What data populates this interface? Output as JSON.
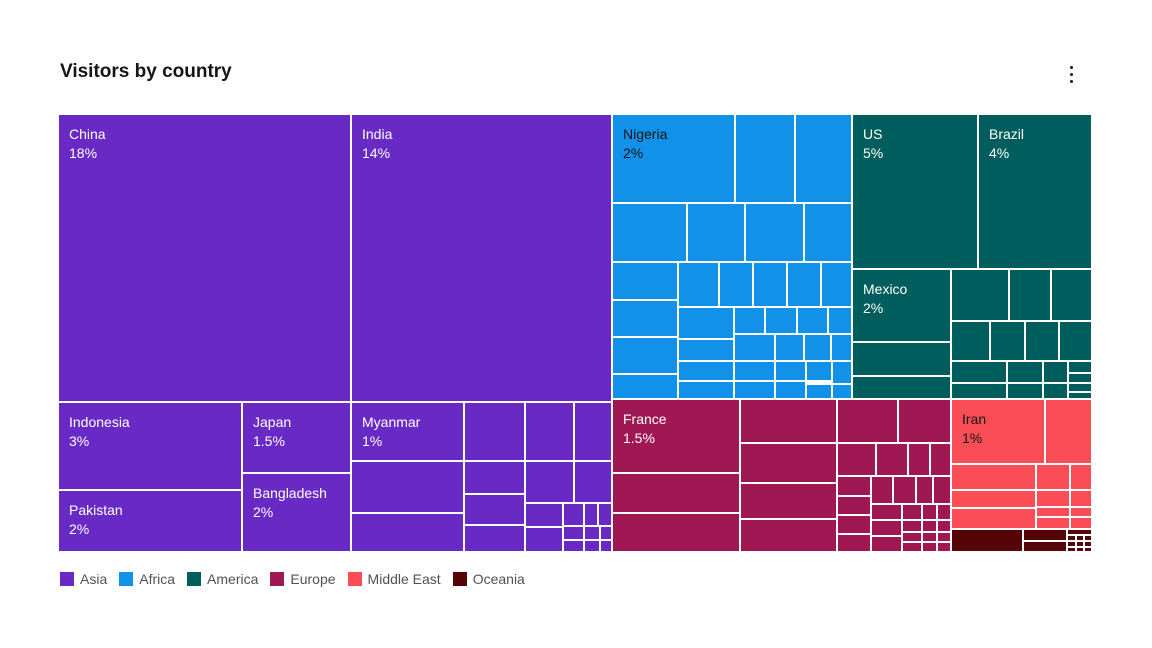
{
  "title": "Visitors by country",
  "menu_icon": "overflow-menu-vertical-icon",
  "chart_data": {
    "type": "treemap",
    "title": "Visitors by country",
    "regions": [
      {
        "name": "Asia",
        "color": "#6929c4",
        "countries": [
          {
            "name": "China",
            "value": 18,
            "label": "18%"
          },
          {
            "name": "India",
            "value": 14,
            "label": "14%"
          },
          {
            "name": "Indonesia",
            "value": 3,
            "label": "3%"
          },
          {
            "name": "Japan",
            "value": 1.5,
            "label": "1.5%"
          },
          {
            "name": "Pakistan",
            "value": 2,
            "label": "2%"
          },
          {
            "name": "Bangladesh",
            "value": 2,
            "label": "2%"
          },
          {
            "name": "Myanmar",
            "value": 1,
            "label": "1%"
          }
        ]
      },
      {
        "name": "Africa",
        "color": "#1192e8",
        "countries": [
          {
            "name": "Nigeria",
            "value": 2,
            "label": "2%"
          }
        ]
      },
      {
        "name": "America",
        "color": "#005d5d",
        "countries": [
          {
            "name": "US",
            "value": 5,
            "label": "5%"
          },
          {
            "name": "Brazil",
            "value": 4,
            "label": "4%"
          },
          {
            "name": "Mexico",
            "value": 2,
            "label": "2%"
          }
        ]
      },
      {
        "name": "Europe",
        "color": "#9f1853",
        "countries": [
          {
            "name": "France",
            "value": 1.5,
            "label": "1.5%"
          }
        ]
      },
      {
        "name": "Middle East",
        "color": "#fa4d56",
        "countries": [
          {
            "name": "Iran",
            "value": 1,
            "label": "1%"
          }
        ]
      },
      {
        "name": "Oceania",
        "color": "#570408",
        "countries": []
      }
    ]
  },
  "legend": [
    {
      "label": "Asia",
      "color": "#6929c4"
    },
    {
      "label": "Africa",
      "color": "#1192e8"
    },
    {
      "label": "America",
      "color": "#005d5d"
    },
    {
      "label": "Europe",
      "color": "#9f1853"
    },
    {
      "label": "Middle East",
      "color": "#fa4d56"
    },
    {
      "label": "Oceania",
      "color": "#570408"
    }
  ]
}
